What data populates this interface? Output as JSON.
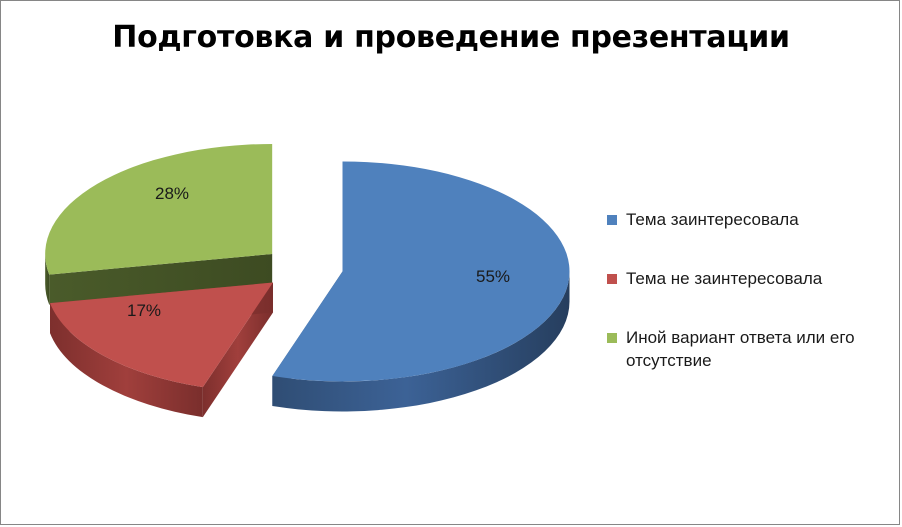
{
  "chart_data": {
    "type": "pie",
    "title": "Подготовка и проведение презентации",
    "categories": [
      "Тема заинтересовала",
      "Тема не заинтересовала",
      "Иной вариант ответа или его отсутствие"
    ],
    "values": [
      55,
      17,
      28
    ],
    "data_labels": [
      "55%",
      "17%",
      "28%"
    ],
    "colors": [
      "#4f81bd",
      "#c0504d",
      "#9bbb59"
    ],
    "legend_position": "right",
    "style": "3d-exploded"
  }
}
